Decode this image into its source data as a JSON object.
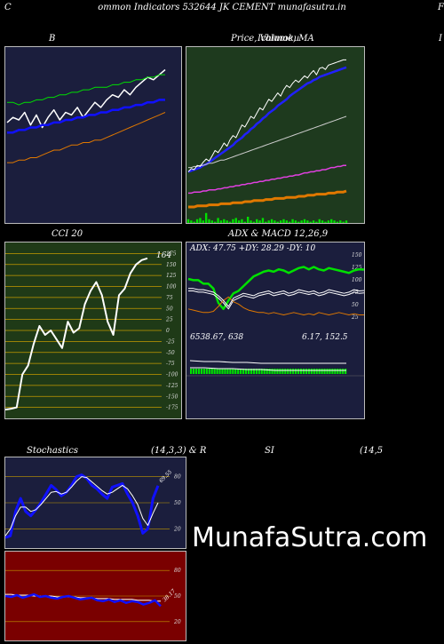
{
  "header": {
    "title": "ommon  Indicators 532644  JK CEMENT munafasutra.in",
    "left_letter": "C",
    "right_letter": "F"
  },
  "panels": {
    "bands": {
      "title": "B"
    },
    "price": {
      "title": "Price,  Volume,  MA",
      "title_overlap": "Ichimoku",
      "title_right": "I"
    },
    "cci": {
      "title": "CCI 20",
      "current_label": "164"
    },
    "adx": {
      "title": "ADX  & MACD 12,26,9",
      "adx_text": "ADX: 47.75  +DY: 28.29 -DY: 10",
      "macd_text_left": "6538.67,  638",
      "macd_text_right": "6.17,  152.5"
    },
    "stoch": {
      "title_left": "Stochastics",
      "title_mid": "(14,3,3) & R",
      "title_right1": "SI",
      "title_right2": "(14,5",
      "current_label": "69.55"
    },
    "rsi": {
      "current_label": "38.17"
    }
  },
  "watermark": "MunafaSutra.com",
  "colors": {
    "background": "#000000",
    "bands_bg": "#1b1e3d",
    "price_bg": "#1e3a1e",
    "cci_bg": "#1f3a17",
    "adx_bg": "#1b1e3d",
    "stoch_bg": "#1b1e3d",
    "rsi_bg": "#7a0000",
    "blue": "#1010ff",
    "green": "#00e000",
    "orange": "#e07800",
    "white": "#ffffff",
    "magenta": "#e040e0"
  },
  "chart_data": [
    {
      "type": "line",
      "name": "bands",
      "series": [
        {
          "values": [
            170,
            172,
            171,
            174,
            169,
            173,
            168,
            172,
            175,
            171,
            174,
            173,
            176,
            172,
            175,
            178,
            176,
            179,
            181,
            180,
            183,
            181,
            184,
            186,
            188,
            187,
            189,
            191
          ]
        },
        {
          "values": [
            166,
            166,
            167,
            167,
            168,
            168,
            169,
            169,
            170,
            170,
            171,
            171,
            172,
            172,
            173,
            173,
            174,
            174,
            175,
            175,
            176,
            176,
            177,
            177,
            178,
            178,
            179,
            179
          ]
        },
        {
          "values": [
            178,
            178,
            177,
            178,
            178,
            179,
            179,
            180,
            180,
            181,
            181,
            182,
            182,
            183,
            183,
            184,
            184,
            184,
            185,
            185,
            186,
            186,
            187,
            187,
            188,
            188,
            189,
            189
          ]
        },
        {
          "values": [
            154,
            154,
            155,
            155,
            156,
            156,
            157,
            158,
            159,
            159,
            160,
            161,
            161,
            162,
            162,
            163,
            163,
            164,
            165,
            166,
            167,
            168,
            169,
            170,
            171,
            172,
            173,
            174
          ]
        }
      ]
    },
    {
      "type": "line",
      "name": "price",
      "price": [
        128,
        131,
        130,
        134,
        133,
        137,
        140,
        138,
        143,
        148,
        146,
        150,
        155,
        152,
        158,
        162,
        160,
        166,
        172,
        170,
        175,
        180,
        178,
        183,
        188,
        186,
        191,
        196,
        194,
        198,
        202,
        199,
        205,
        209,
        207,
        211,
        214,
        212,
        215,
        218,
        216,
        220,
        223,
        219,
        225,
        226,
        224,
        228,
        229,
        230,
        231,
        232,
        233,
        233
      ],
      "series": [
        {
          "values": [
            128,
            129,
            130,
            131,
            132,
            134,
            135,
            137,
            139,
            141,
            143,
            145,
            147,
            149,
            151,
            153,
            156,
            158,
            160,
            163,
            165,
            168,
            170,
            173,
            175,
            178,
            180,
            183,
            185,
            187,
            190,
            192,
            194,
            196,
            199,
            201,
            203,
            205,
            207,
            209,
            211,
            212,
            214,
            215,
            217,
            218,
            219,
            220,
            221,
            222,
            223,
            224,
            225,
            226
          ]
        },
        {
          "values": [
            132,
            132,
            133,
            133,
            134,
            134,
            135,
            136,
            136,
            137,
            138,
            139,
            139,
            140,
            141,
            142,
            143,
            144,
            145,
            146,
            147,
            148,
            149,
            150,
            151,
            152,
            153,
            154,
            155,
            156,
            157,
            158,
            159,
            160,
            161,
            162,
            163,
            164,
            165,
            166,
            167,
            168,
            169,
            170,
            171,
            172,
            173,
            174,
            175,
            176,
            177,
            178,
            179,
            180
          ]
        },
        {
          "values": [
            108,
            108,
            109,
            109,
            109,
            110,
            110,
            111,
            111,
            111,
            112,
            112,
            113,
            113,
            114,
            114,
            115,
            115,
            116,
            116,
            117,
            117,
            118,
            118,
            119,
            119,
            120,
            120,
            121,
            121,
            122,
            122,
            123,
            123,
            124,
            124,
            125,
            125,
            126,
            127,
            127,
            128,
            128,
            129,
            129,
            130,
            130,
            131,
            132,
            132,
            133,
            133,
            134,
            134
          ]
        },
        {
          "values": [
            95,
            95,
            95,
            96,
            96,
            96,
            96,
            97,
            97,
            97,
            97,
            98,
            98,
            98,
            98,
            99,
            99,
            99,
            99,
            100,
            100,
            100,
            101,
            101,
            101,
            101,
            102,
            102,
            102,
            103,
            103,
            103,
            103,
            104,
            104,
            104,
            104,
            105,
            105,
            105,
            106,
            106,
            106,
            107,
            107,
            107,
            107,
            108,
            108,
            108,
            109,
            109,
            109,
            110
          ]
        }
      ],
      "volume": [
        3,
        2,
        1,
        3,
        4,
        2,
        8,
        3,
        2,
        1,
        4,
        2,
        3,
        2,
        1,
        3,
        4,
        2,
        3,
        1,
        5,
        2,
        1,
        3,
        2,
        4,
        1,
        2,
        3,
        2,
        1,
        2,
        3,
        2,
        1,
        3,
        2,
        1,
        2,
        3,
        2,
        1,
        2,
        1,
        3,
        2,
        1,
        2,
        3,
        2,
        1,
        2,
        1,
        2
      ]
    },
    {
      "type": "line",
      "name": "cci",
      "ylim": [
        -175,
        175
      ],
      "ticks": [
        175,
        150,
        125,
        100,
        75,
        50,
        25,
        0,
        -25,
        -50,
        -75,
        -100,
        -125,
        -150,
        -175
      ],
      "values": [
        -180,
        -178,
        -175,
        -100,
        -80,
        -30,
        10,
        -10,
        0,
        -20,
        -40,
        20,
        -5,
        5,
        60,
        90,
        110,
        80,
        20,
        -10,
        80,
        95,
        130,
        150,
        160,
        164
      ]
    },
    {
      "type": "line",
      "name": "adx",
      "series": [
        {
          "name": "ADX",
          "values": [
            40,
            39,
            39,
            36,
            36,
            32,
            20,
            15,
            22,
            28,
            30,
            34,
            38,
            42,
            44,
            46,
            47,
            46,
            48,
            47,
            45,
            47,
            49,
            50,
            48,
            50,
            48,
            47,
            49,
            48,
            47,
            46,
            45,
            47,
            48,
            47.75
          ]
        },
        {
          "name": "+DY",
          "values": [
            30,
            30,
            29,
            29,
            28,
            27,
            24,
            20,
            15,
            22,
            24,
            26,
            25,
            24,
            26,
            27,
            28,
            26,
            27,
            28,
            26,
            27,
            29,
            28,
            27,
            28,
            26,
            27,
            29,
            28,
            27,
            26,
            27,
            29,
            28,
            28.29
          ]
        },
        {
          "name": "-DY",
          "values": [
            15,
            14,
            13,
            12,
            12,
            13,
            17,
            22,
            25,
            21,
            19,
            16,
            14,
            13,
            12,
            12,
            11,
            12,
            11,
            10,
            11,
            12,
            11,
            10,
            11,
            10,
            12,
            11,
            10,
            11,
            12,
            11,
            10,
            11,
            10,
            10
          ]
        }
      ]
    },
    {
      "type": "bar",
      "name": "macd",
      "macd": 6538.67,
      "signal": 6.17,
      "histogram": 152.5
    },
    {
      "type": "line",
      "name": "stochastics",
      "ticks": [
        80,
        50,
        20
      ],
      "series": [
        {
          "name": "%K",
          "values": [
            10,
            12,
            40,
            55,
            40,
            35,
            42,
            50,
            60,
            70,
            65,
            58,
            62,
            70,
            80,
            82,
            78,
            70,
            66,
            60,
            55,
            68,
            70,
            72,
            60,
            50,
            35,
            15,
            20,
            55,
            69.55
          ]
        },
        {
          "name": "%D",
          "values": [
            12,
            20,
            35,
            45,
            45,
            40,
            42,
            48,
            55,
            62,
            63,
            60,
            62,
            68,
            75,
            80,
            79,
            74,
            69,
            64,
            60,
            62,
            66,
            70,
            66,
            58,
            48,
            32,
            24,
            38,
            50
          ]
        }
      ]
    },
    {
      "type": "line",
      "name": "rsi",
      "ticks": [
        80,
        50,
        20
      ],
      "series": [
        {
          "name": "RSI",
          "values": [
            50,
            49,
            51,
            48,
            50,
            52,
            49,
            50,
            48,
            47,
            49,
            50,
            48,
            46,
            47,
            48,
            45,
            44,
            46,
            43,
            45,
            42,
            44,
            43,
            40,
            42,
            45,
            38.17
          ]
        },
        {
          "name": "MA",
          "values": [
            52,
            52,
            51,
            51,
            51,
            50,
            50,
            50,
            50,
            49,
            49,
            49,
            49,
            48,
            48,
            48,
            47,
            47,
            47,
            46,
            46,
            46,
            46,
            45,
            45,
            45,
            44,
            44
          ]
        }
      ]
    }
  ]
}
